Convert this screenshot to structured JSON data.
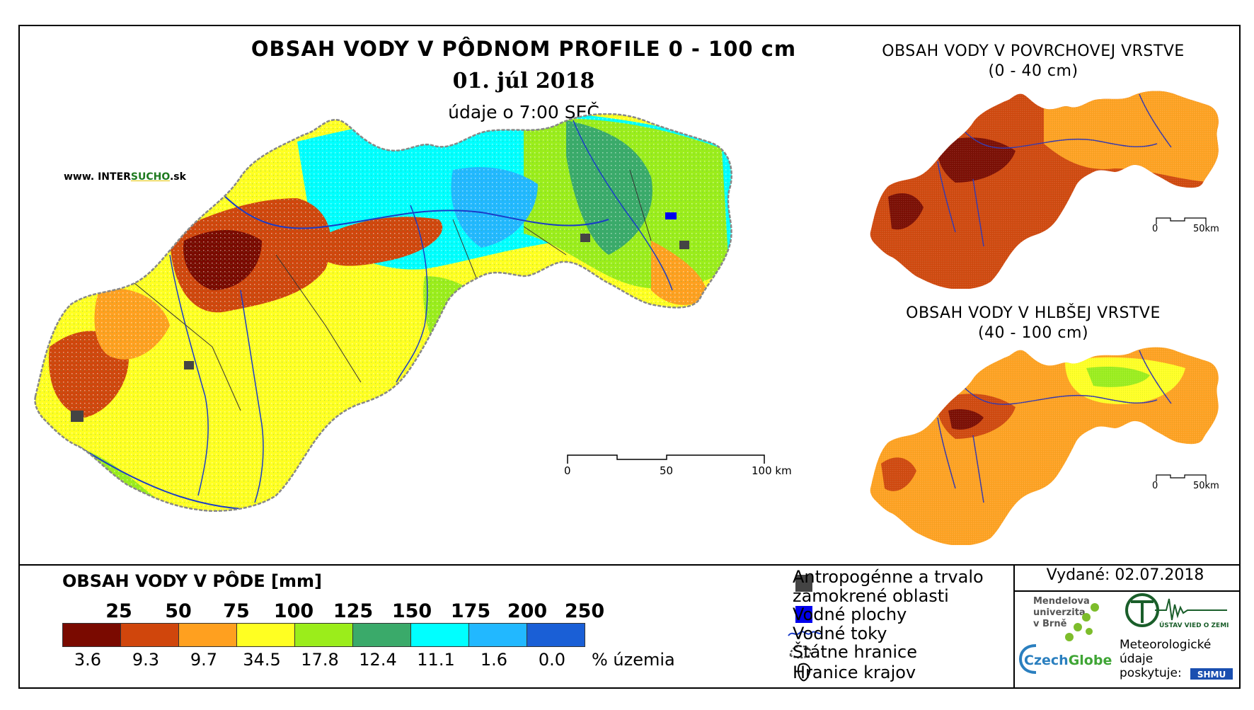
{
  "main_map": {
    "title": "OBSAH VODY V PÔDNOM PROFILE 0 - 100 cm",
    "date": "01. júl 2018",
    "time_note": "údaje o 7:00 SEČ",
    "website_prefix": "www. INTER",
    "website_highlight": "SUCHO",
    "website_suffix": ".sk",
    "scale_labels": [
      "0",
      "50",
      "100 km"
    ]
  },
  "inset_top": {
    "title": "OBSAH VODY V POVRCHOVEJ VRSTVE",
    "subtitle": "(0 - 40 cm)",
    "scale_labels": [
      "0",
      "50km"
    ]
  },
  "inset_bottom": {
    "title": "OBSAH VODY V HLBŠEJ VRSTVE",
    "subtitle": "(40 - 100 cm)",
    "scale_labels": [
      "0",
      "50km"
    ]
  },
  "legend": {
    "title": "OBSAH VODY V PÔDE [mm]",
    "breaks": [
      "25",
      "50",
      "75",
      "100",
      "125",
      "150",
      "175",
      "200",
      "250"
    ],
    "colors": [
      "#7a0a00",
      "#d0460c",
      "#ffa01f",
      "#ffff22",
      "#9bed1b",
      "#3aaa6a",
      "#00ffff",
      "#22b8ff",
      "#1a5fd6"
    ],
    "percentages": [
      "3.6",
      "9.3",
      "9.7",
      "34.5",
      "17.8",
      "12.4",
      "11.1",
      "1.6",
      "0.0"
    ],
    "percent_unit": "% územia"
  },
  "symbols": {
    "anthropogenic_line1": "Antropogénne a trvalo",
    "anthropogenic_line2": "zamokrené oblasti",
    "water_bodies": "Vodné plochy",
    "water_streams": "Vodné toky",
    "state_border": "Štátne hranice",
    "region_border": "Hranice krajov"
  },
  "info": {
    "issued": "Vydané: 02.07.2018",
    "mendel_line1": "Mendelova",
    "mendel_line2": "univerzita",
    "mendel_line3": "v Brně",
    "czechglobe_a": "Czech",
    "czechglobe_b": "Globe",
    "met_line1": "Meteorologické",
    "met_line2": "údaje",
    "met_line3": "poskytuje:",
    "ustav": "ÚSTAV VIED O ZEMI",
    "shmu": "SHMU"
  }
}
